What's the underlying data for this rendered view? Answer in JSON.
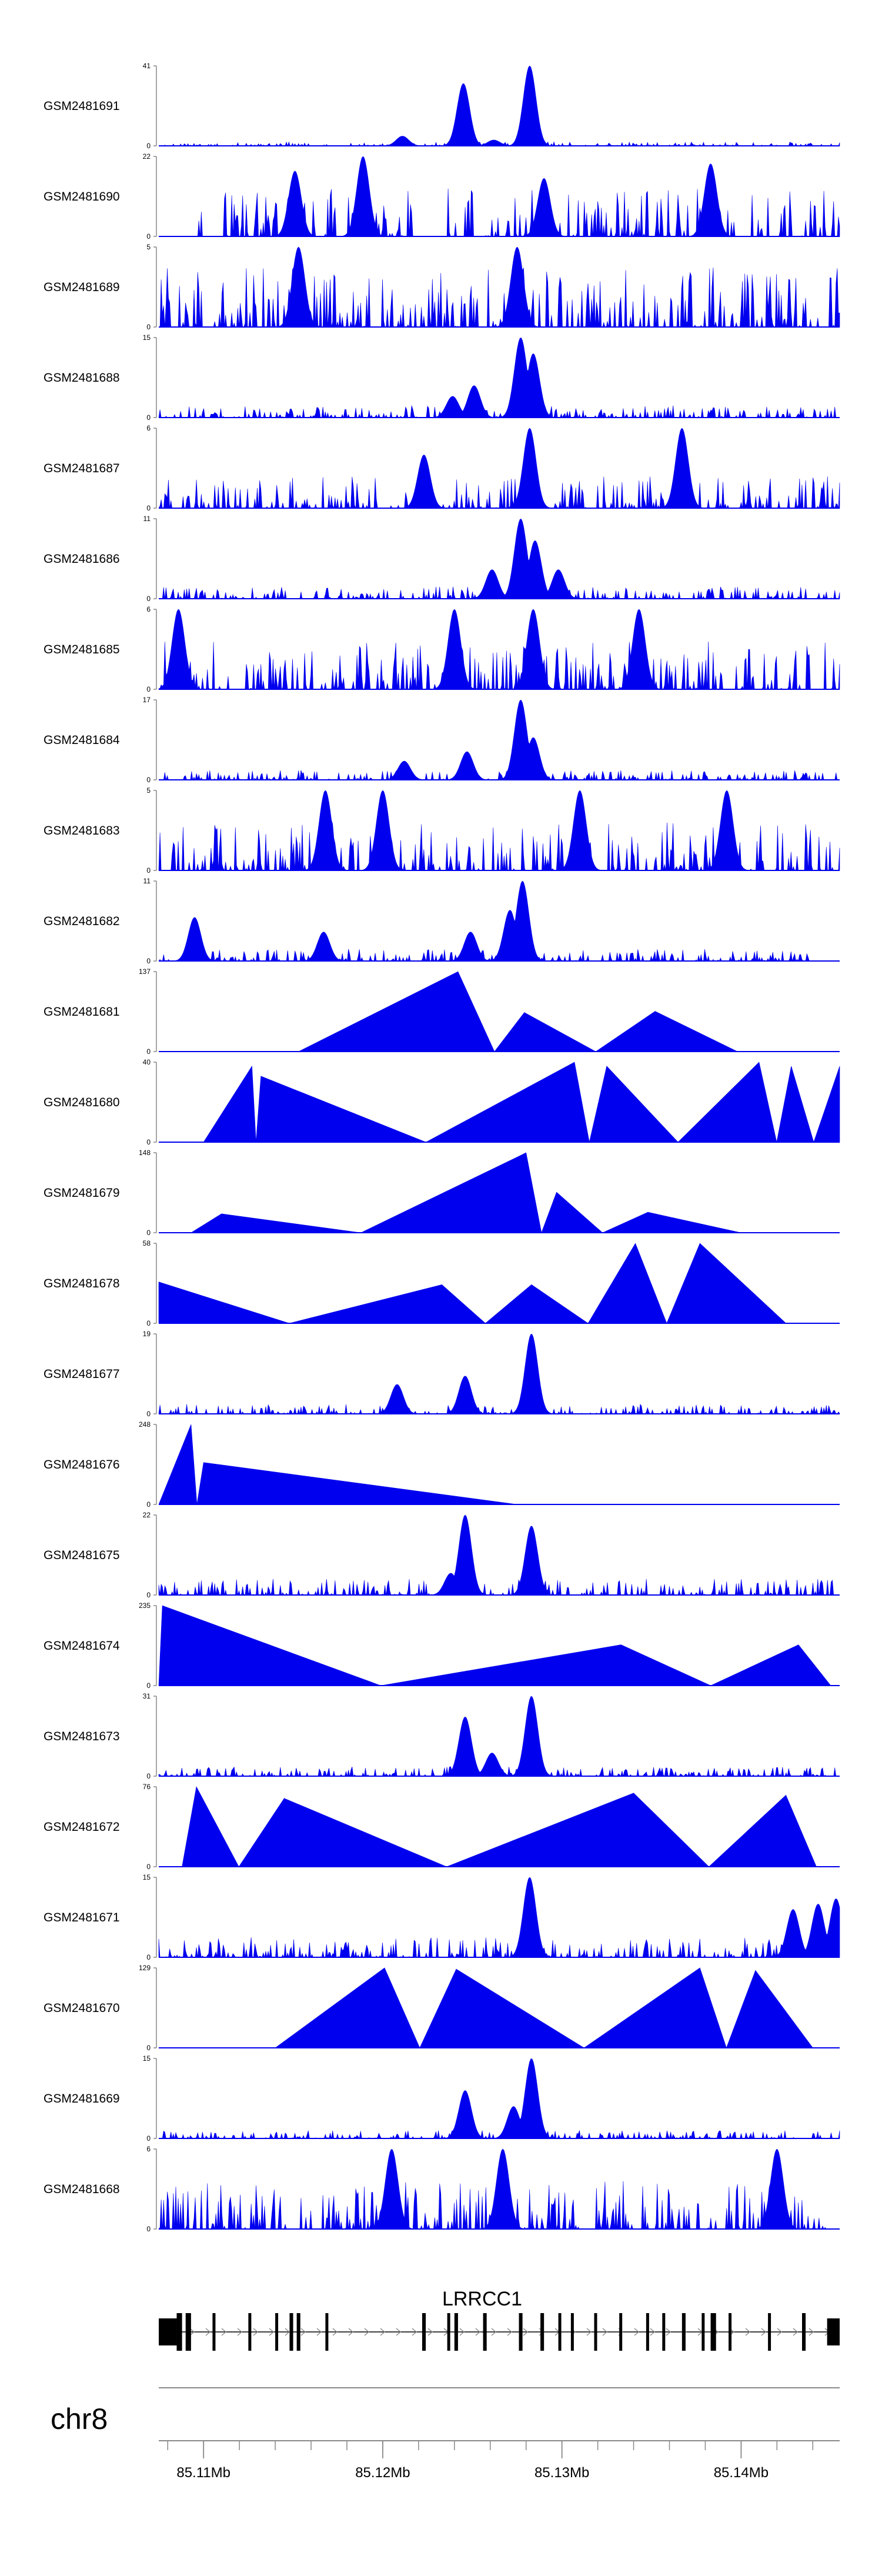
{
  "chart_data": {
    "type": "area",
    "title": "",
    "chromosome": "chr8",
    "x_unit": "Mb",
    "xlim": [
      85.1075,
      85.1455
    ],
    "ticks": [
      85.11,
      85.12,
      85.13,
      85.14
    ],
    "tick_labels": [
      "85.11Mb",
      "85.12Mb",
      "85.13Mb",
      "85.14Mb"
    ],
    "color": "#0000ee",
    "gene": {
      "name": "LRRCC1",
      "start": 85.1075,
      "end": 85.1455,
      "strand": "+",
      "exons": [
        [
          85.1075,
          85.1085
        ],
        [
          85.1085,
          85.1088
        ],
        [
          85.109,
          85.1093
        ],
        [
          85.1105,
          85.1106
        ],
        [
          85.1125,
          85.1126
        ],
        [
          85.114,
          85.1141
        ],
        [
          85.1148,
          85.115
        ],
        [
          85.1152,
          85.1154
        ],
        [
          85.1168,
          85.1169
        ],
        [
          85.1222,
          85.1224
        ],
        [
          85.1236,
          85.1237
        ],
        [
          85.124,
          85.1242
        ],
        [
          85.1256,
          85.1258
        ],
        [
          85.1276,
          85.1278
        ],
        [
          85.1288,
          85.129
        ],
        [
          85.1298,
          85.1299
        ],
        [
          85.1305,
          85.1306
        ],
        [
          85.1318,
          85.1319
        ],
        [
          85.1332,
          85.1333
        ],
        [
          85.1347,
          85.1348
        ],
        [
          85.1356,
          85.1357
        ],
        [
          85.1367,
          85.1369
        ],
        [
          85.1378,
          85.1379
        ],
        [
          85.1383,
          85.1386
        ],
        [
          85.1393,
          85.1394
        ],
        [
          85.1415,
          85.1416
        ],
        [
          85.1434,
          85.1436
        ],
        [
          85.1448,
          85.1455
        ]
      ]
    },
    "tracks": [
      {
        "name": "GSM2481691",
        "ymax": 41,
        "peaks": [
          [
            85.1245,
            32
          ],
          [
            85.1282,
            41
          ],
          [
            85.1211,
            5
          ],
          [
            85.1262,
            3
          ]
        ],
        "noise": 0.05,
        "gaps": []
      },
      {
        "name": "GSM2481690",
        "ymax": 22,
        "peaks": [
          [
            85.1151,
            18
          ],
          [
            85.1189,
            22
          ],
          [
            85.1383,
            20
          ],
          [
            85.129,
            16
          ]
        ],
        "noise": 0.6,
        "gaps": [
          [
            85.1075,
            85.1095
          ],
          [
            85.1218,
            85.1236
          ],
          [
            85.1396,
            85.1405
          ]
        ]
      },
      {
        "name": "GSM2481689",
        "ymax": 5,
        "peaks": [
          [
            85.1153,
            5
          ],
          [
            85.1275,
            5
          ]
        ],
        "noise": 0.75,
        "gaps": []
      },
      {
        "name": "GSM2481688",
        "ymax": 15,
        "peaks": [
          [
            85.1277,
            15
          ],
          [
            85.1284,
            12
          ],
          [
            85.1251,
            6
          ],
          [
            85.1239,
            4
          ]
        ],
        "noise": 0.15,
        "gaps": []
      },
      {
        "name": "GSM2481687",
        "ymax": 6,
        "peaks": [
          [
            85.1282,
            6
          ],
          [
            85.1367,
            6
          ],
          [
            85.1223,
            4
          ]
        ],
        "noise": 0.4,
        "gaps": []
      },
      {
        "name": "GSM2481686",
        "ymax": 11,
        "peaks": [
          [
            85.1277,
            11
          ],
          [
            85.1285,
            8
          ],
          [
            85.1261,
            4
          ],
          [
            85.1298,
            4
          ]
        ],
        "noise": 0.15,
        "gaps": []
      },
      {
        "name": "GSM2481685",
        "ymax": 6,
        "peaks": [
          [
            85.1086,
            6
          ],
          [
            85.124,
            6
          ],
          [
            85.1284,
            6
          ],
          [
            85.1343,
            6
          ]
        ],
        "noise": 0.6,
        "gaps": []
      },
      {
        "name": "GSM2481684",
        "ymax": 17,
        "peaks": [
          [
            85.1277,
            17
          ],
          [
            85.1284,
            9
          ],
          [
            85.1247,
            6
          ],
          [
            85.1212,
            4
          ]
        ],
        "noise": 0.12,
        "gaps": []
      },
      {
        "name": "GSM2481683",
        "ymax": 5,
        "peaks": [
          [
            85.1168,
            5
          ],
          [
            85.12,
            5
          ],
          [
            85.131,
            5
          ],
          [
            85.1392,
            5
          ]
        ],
        "noise": 0.6,
        "gaps": []
      },
      {
        "name": "GSM2481682",
        "ymax": 11,
        "peaks": [
          [
            85.1278,
            11
          ],
          [
            85.1271,
            7
          ],
          [
            85.1249,
            4
          ],
          [
            85.1167,
            4
          ],
          [
            85.1095,
            6
          ]
        ],
        "noise": 0.15,
        "gaps": [
          [
            85.144,
            85.1455
          ]
        ]
      },
      {
        "name": "GSM2481681",
        "ymax": 137,
        "peaks": [
          [
            85.1242,
            137
          ],
          [
            85.1279,
            67
          ],
          [
            85.1352,
            69
          ]
        ],
        "noise": 0,
        "gaps": [
          [
            85.1075,
            85.1153
          ],
          [
            85.1398,
            85.1455
          ]
        ],
        "mode": "triangles"
      },
      {
        "name": "GSM2481680",
        "ymax": 40,
        "peaks": [
          [
            85.1127,
            38
          ],
          [
            85.1132,
            33
          ],
          [
            85.1307,
            40
          ],
          [
            85.1325,
            38
          ],
          [
            85.141,
            40
          ],
          [
            85.1428,
            38
          ],
          [
            85.1455,
            38
          ]
        ],
        "noise": 0,
        "gaps": [
          [
            85.1075,
            85.11
          ]
        ],
        "mode": "triangles"
      },
      {
        "name": "GSM2481679",
        "ymax": 148,
        "peaks": [
          [
            85.111,
            35
          ],
          [
            85.128,
            148
          ],
          [
            85.1297,
            75
          ],
          [
            85.1348,
            38
          ]
        ],
        "noise": 0,
        "gaps": [
          [
            85.1075,
            85.1093
          ],
          [
            85.14,
            85.1455
          ]
        ],
        "mode": "triangles"
      },
      {
        "name": "GSM2481678",
        "ymax": 58,
        "peaks": [
          [
            85.1075,
            30
          ],
          [
            85.1233,
            28
          ],
          [
            85.1283,
            28
          ],
          [
            85.1341,
            58
          ],
          [
            85.1377,
            58
          ]
        ],
        "noise": 0,
        "gaps": [
          [
            85.1425,
            85.1455
          ]
        ],
        "mode": "triangles"
      },
      {
        "name": "GSM2481677",
        "ymax": 19,
        "peaks": [
          [
            85.1283,
            19
          ],
          [
            85.1246,
            9
          ],
          [
            85.1208,
            7
          ]
        ],
        "noise": 0.12,
        "gaps": []
      },
      {
        "name": "GSM2481676",
        "ymax": 248,
        "peaks": [
          [
            85.1093,
            248
          ],
          [
            85.11,
            130
          ]
        ],
        "noise": 0,
        "gaps": [
          [
            85.1275,
            85.1455
          ]
        ],
        "mode": "triangles"
      },
      {
        "name": "GSM2481675",
        "ymax": 22,
        "peaks": [
          [
            85.1246,
            22
          ],
          [
            85.1283,
            19
          ],
          [
            85.1238,
            6
          ]
        ],
        "noise": 0.2,
        "gaps": []
      },
      {
        "name": "GSM2481674",
        "ymax": 235,
        "peaks": [
          [
            85.1077,
            235
          ],
          [
            85.1333,
            120
          ],
          [
            85.1432,
            120
          ]
        ],
        "noise": 0,
        "gaps": [
          [
            85.145,
            85.1455
          ]
        ],
        "mode": "triangles"
      },
      {
        "name": "GSM2481673",
        "ymax": 31,
        "peaks": [
          [
            85.1246,
            23
          ],
          [
            85.1283,
            31
          ],
          [
            85.1261,
            9
          ]
        ],
        "noise": 0.12,
        "gaps": []
      },
      {
        "name": "GSM2481672",
        "ymax": 76,
        "peaks": [
          [
            85.1096,
            76
          ],
          [
            85.1145,
            65
          ],
          [
            85.134,
            70
          ],
          [
            85.1425,
            68
          ]
        ],
        "noise": 0,
        "gaps": [
          [
            85.1075,
            85.1088
          ],
          [
            85.1442,
            85.1455
          ]
        ],
        "mode": "triangles"
      },
      {
        "name": "GSM2481671",
        "ymax": 15,
        "peaks": [
          [
            85.1282,
            15
          ],
          [
            85.1429,
            9
          ],
          [
            85.1443,
            10
          ],
          [
            85.1453,
            11
          ]
        ],
        "noise": 0.25,
        "gaps": []
      },
      {
        "name": "GSM2481670",
        "ymax": 129,
        "peaks": [
          [
            85.1201,
            129
          ],
          [
            85.1241,
            127
          ],
          [
            85.1377,
            129
          ],
          [
            85.1408,
            125
          ]
        ],
        "noise": 0,
        "gaps": [
          [
            85.1075,
            85.114
          ],
          [
            85.144,
            85.1455
          ]
        ],
        "mode": "triangles"
      },
      {
        "name": "GSM2481669",
        "ymax": 15,
        "peaks": [
          [
            85.1283,
            15
          ],
          [
            85.1246,
            9
          ],
          [
            85.1273,
            6
          ]
        ],
        "noise": 0.1,
        "gaps": []
      },
      {
        "name": "GSM2481668",
        "ymax": 6,
        "peaks": [
          [
            85.1205,
            6
          ],
          [
            85.1267,
            6
          ],
          [
            85.142,
            6
          ]
        ],
        "noise": 0.6,
        "gaps": [
          [
            85.1448,
            85.1455
          ]
        ]
      }
    ]
  }
}
